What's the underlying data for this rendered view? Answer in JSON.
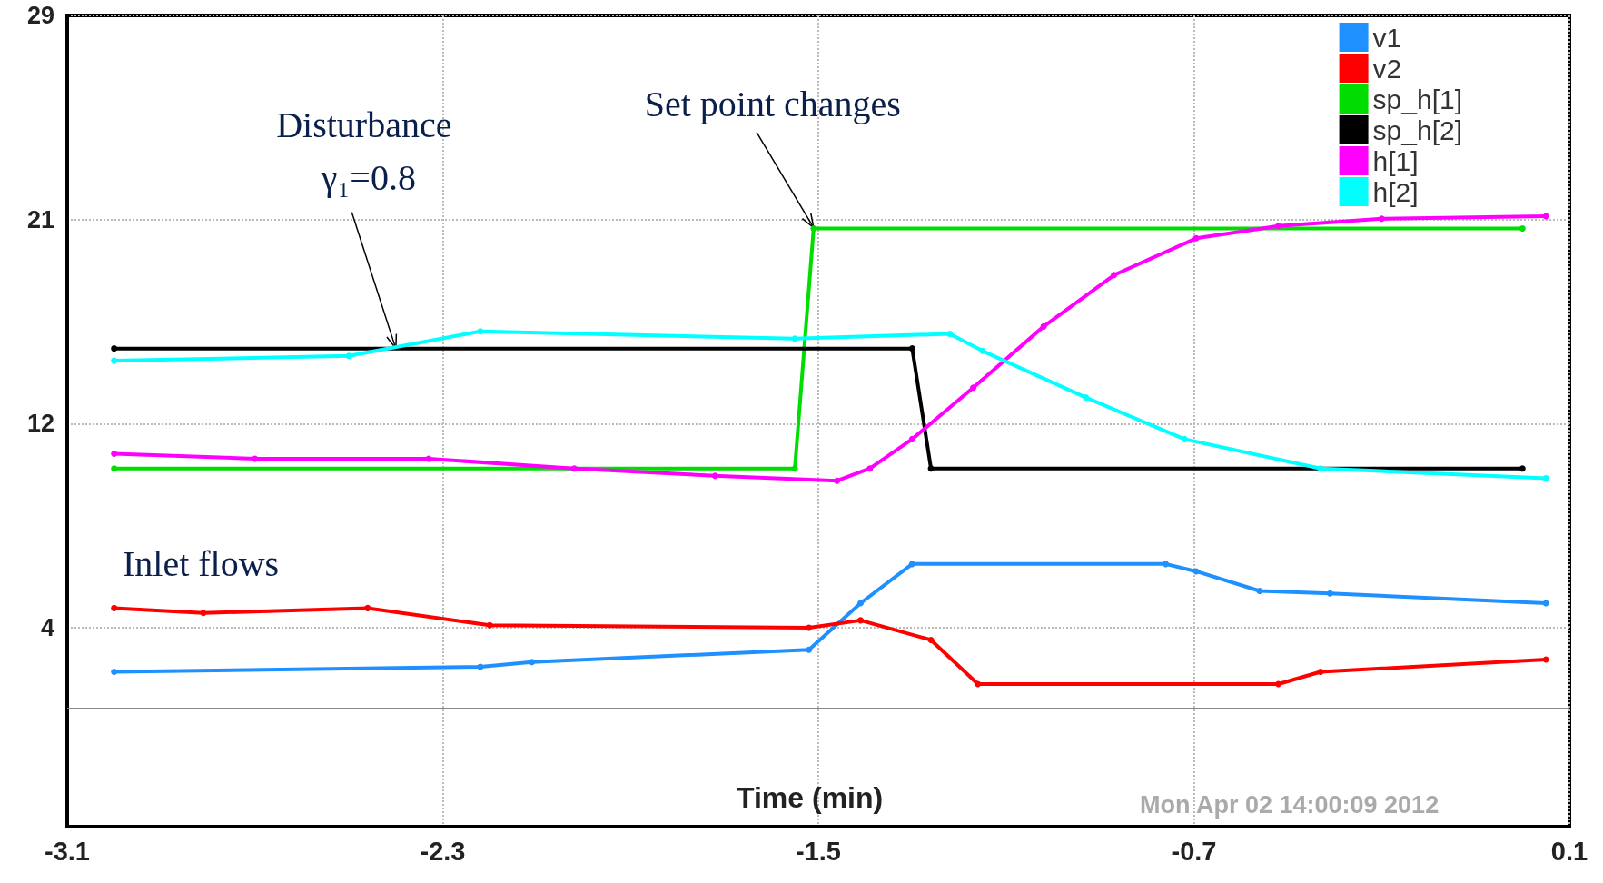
{
  "chart_data": {
    "type": "line",
    "xlabel": "Time (min)",
    "xlim": [
      -3.1,
      0.1
    ],
    "xticks": [
      -3.1,
      -2.3,
      -1.5,
      -0.7,
      0.1
    ],
    "ylim": [
      -4.125,
      29
    ],
    "yticks": [
      {
        "value": 4,
        "label": "4"
      },
      {
        "value": 12.33,
        "label": "12"
      },
      {
        "value": 20.67,
        "label": "21"
      },
      {
        "value": 29,
        "label": "29"
      }
    ],
    "grid": true,
    "legend": "top right",
    "marker": "circle",
    "line_style": "solid",
    "ref_lines": [
      {
        "axis": "y",
        "value": 0.7,
        "label": null,
        "color": "#888888"
      }
    ],
    "annotations": [
      {
        "text": "Disturbance γ₁=0.8",
        "x": -2.4,
        "y": 15.4
      },
      {
        "text": "Set point changes",
        "x": -1.51,
        "y": 20.33
      },
      "Inlet flows",
      "Mon Apr 02 14:00:09 2012"
    ],
    "series": [
      {
        "name": "v1",
        "color": "#1e90ff",
        "x": [
          -3.0,
          -2.22,
          -2.11,
          -1.52,
          -1.41,
          -1.3,
          -0.76,
          -0.695,
          -0.56,
          -0.41,
          0.05
        ],
        "values": [
          2.2,
          2.4,
          2.6,
          3.1,
          5.0,
          6.6,
          6.6,
          6.3,
          5.5,
          5.4,
          5.0
        ]
      },
      {
        "name": "v2",
        "color": "#ff0000",
        "x": [
          -3.0,
          -2.81,
          -2.46,
          -2.2,
          -1.52,
          -1.41,
          -1.26,
          -1.16,
          -0.52,
          -0.43,
          0.05
        ],
        "values": [
          4.8,
          4.6,
          4.8,
          4.1,
          4.0,
          4.3,
          3.5,
          1.7,
          1.7,
          2.2,
          2.7
        ]
      },
      {
        "name": "sp_h[1]",
        "color": "#00dd00",
        "x": [
          -3.0,
          -1.55,
          -1.51,
          0.0
        ],
        "values": [
          10.5,
          10.5,
          20.3,
          20.3
        ]
      },
      {
        "name": "sp_h[2]",
        "color": "#000000",
        "x": [
          -3.0,
          -1.3,
          -1.26,
          0.0
        ],
        "values": [
          15.4,
          15.4,
          10.5,
          10.5
        ]
      },
      {
        "name": "h[1]",
        "color": "#ff00ff",
        "x": [
          -3.0,
          -2.7,
          -2.33,
          -2.02,
          -1.72,
          -1.46,
          -1.39,
          -1.3,
          -1.17,
          -1.02,
          -0.87,
          -0.695,
          -0.52,
          -0.3,
          0.05
        ],
        "values": [
          11.1,
          10.9,
          10.9,
          10.5,
          10.2,
          10.0,
          10.5,
          11.7,
          13.8,
          16.3,
          18.4,
          19.9,
          20.4,
          20.7,
          20.8
        ]
      },
      {
        "name": "h[2]",
        "color": "#00ffff",
        "x": [
          -3.0,
          -2.5,
          -2.22,
          -1.55,
          -1.22,
          -1.15,
          -0.93,
          -0.72,
          -0.43,
          0.05
        ],
        "values": [
          14.9,
          15.1,
          16.1,
          15.8,
          16.0,
          15.3,
          13.4,
          11.7,
          10.5,
          10.1
        ]
      }
    ]
  }
}
